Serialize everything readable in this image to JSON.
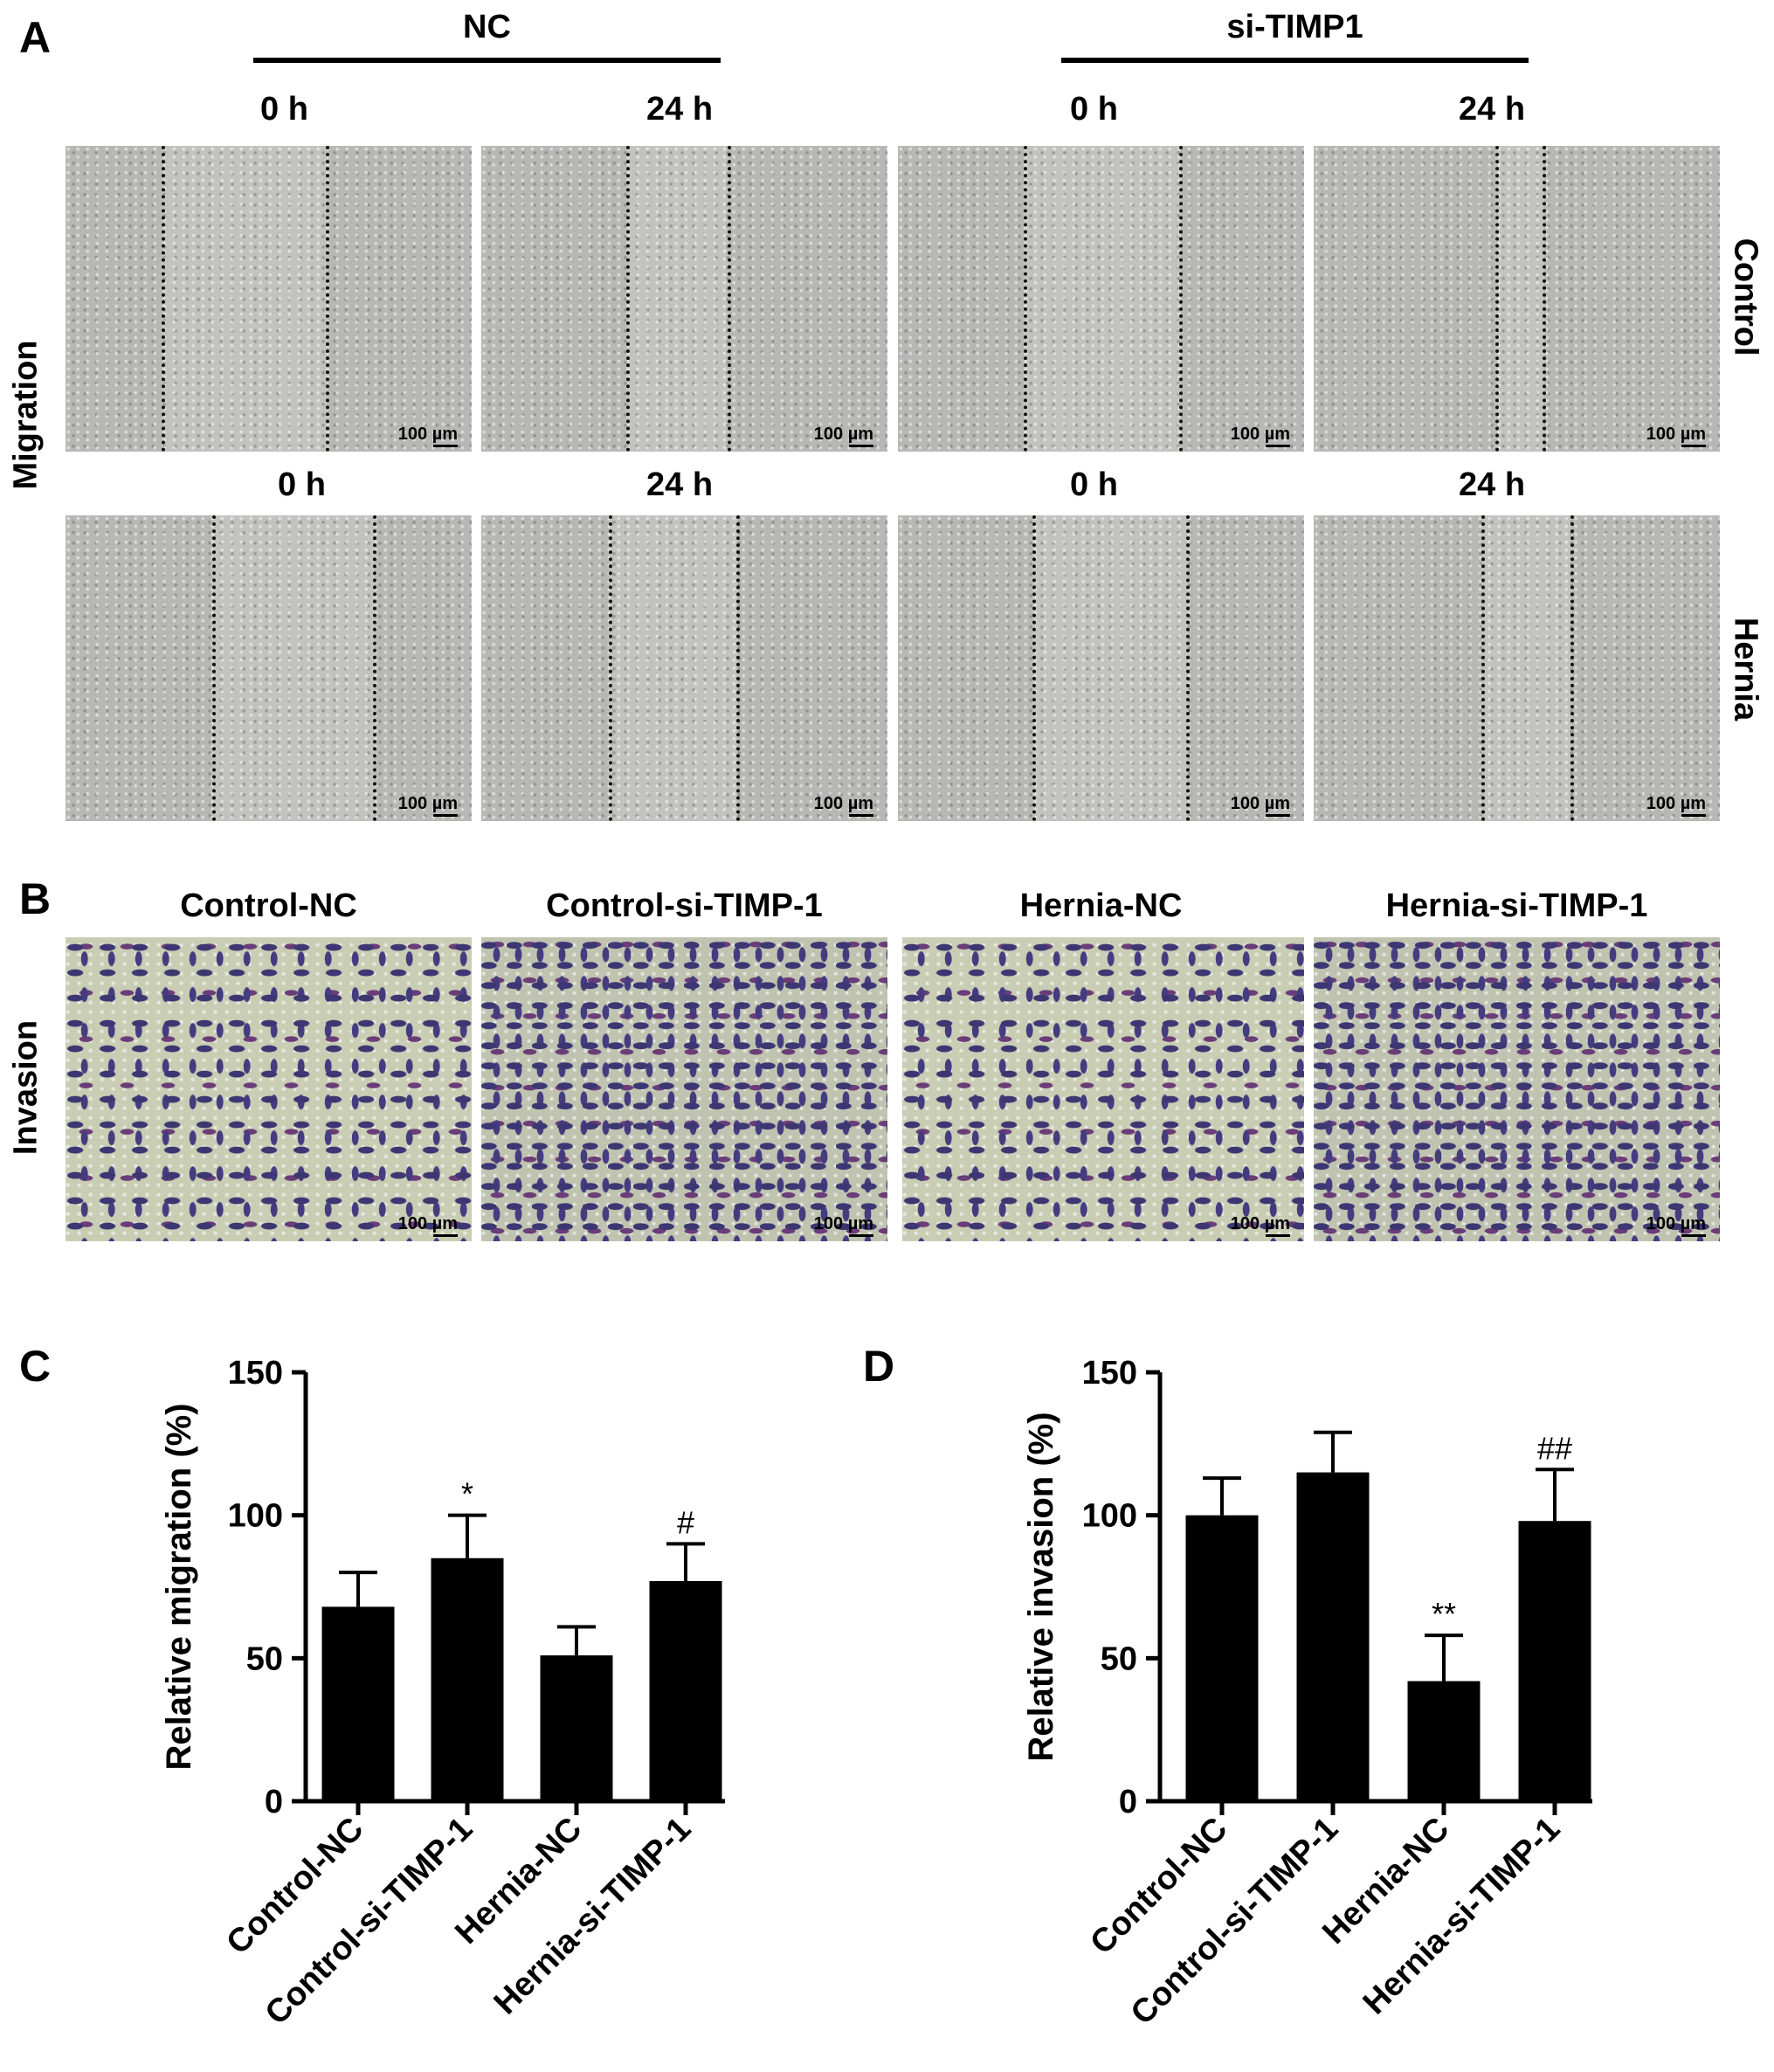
{
  "panels": {
    "A": "A",
    "B": "B",
    "C": "C",
    "D": "D"
  },
  "panel_a": {
    "group_headers": [
      "NC",
      "si-TIMP1"
    ],
    "time_row1": [
      "0 h",
      "24 h",
      "0 h",
      "24 h"
    ],
    "time_row2": [
      "0 h",
      "24 h",
      "0 h",
      "24 h"
    ],
    "row_label": "Migration",
    "side_labels": [
      "Control",
      "Hernia"
    ],
    "scale_bar": "100 µm"
  },
  "panel_b": {
    "headers": [
      "Control-NC",
      "Control-si-TIMP-1",
      "Hernia-NC",
      "Hernia-si-TIMP-1"
    ],
    "row_label": "Invasion",
    "scale_bar": "100 µm"
  },
  "chart_data": [
    {
      "type": "bar",
      "panel": "C",
      "categories": [
        "Control-NC",
        "Control-si-TIMP-1",
        "Hernia-NC",
        "Hernia-si-TIMP-1"
      ],
      "values": [
        68,
        85,
        51,
        77
      ],
      "errors": [
        12,
        15,
        10,
        13
      ],
      "annotations": [
        "",
        "*",
        "",
        "#"
      ],
      "ylabel": "Relative migration (%)",
      "ylim": [
        0,
        150
      ],
      "yticks": [
        0,
        50,
        100,
        150
      ],
      "bar_color": "#000000"
    },
    {
      "type": "bar",
      "panel": "D",
      "categories": [
        "Control-NC",
        "Control-si-TIMP-1",
        "Hernia-NC",
        "Hernia-si-TIMP-1"
      ],
      "values": [
        100,
        115,
        42,
        98
      ],
      "errors": [
        13,
        14,
        16,
        18
      ],
      "annotations": [
        "",
        "",
        "**",
        "##"
      ],
      "ylabel": "Relative invasion (%)",
      "ylim": [
        0,
        150
      ],
      "yticks": [
        0,
        50,
        100,
        150
      ],
      "bar_color": "#000000"
    }
  ]
}
